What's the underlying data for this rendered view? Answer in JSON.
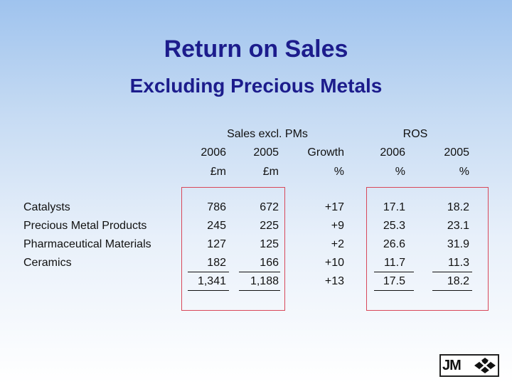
{
  "title": "Return on Sales",
  "subtitle": "Excluding Precious Metals",
  "headers": {
    "group_sales": "Sales excl. PMs",
    "group_ros": "ROS",
    "sales_2006_year": "2006",
    "sales_2006_unit": "£m",
    "sales_2005_year": "2005",
    "sales_2005_unit": "£m",
    "growth_label": "Growth",
    "growth_unit": "%",
    "ros_2006_year": "2006",
    "ros_2006_unit": "%",
    "ros_2005_year": "2005",
    "ros_2005_unit": "%"
  },
  "rows": [
    {
      "label": "Catalysts",
      "sales_2006": "786",
      "sales_2005": "672",
      "growth": "+17",
      "ros_2006": "17.1",
      "ros_2005": "18.2"
    },
    {
      "label": "Precious Metal Products",
      "sales_2006": "245",
      "sales_2005": "225",
      "growth": "+9",
      "ros_2006": "25.3",
      "ros_2005": "23.1"
    },
    {
      "label": "Pharmaceutical Materials",
      "sales_2006": "127",
      "sales_2005": "125",
      "growth": "+2",
      "ros_2006": "26.6",
      "ros_2005": "31.9"
    },
    {
      "label": "Ceramics",
      "sales_2006": "182",
      "sales_2005": "166",
      "growth": "+10",
      "ros_2006": "11.7",
      "ros_2005": "11.3"
    }
  ],
  "totals": {
    "sales_2006": "1,341",
    "sales_2005": "1,188",
    "growth": "+13",
    "ros_2006": "17.5",
    "ros_2005": "18.2"
  },
  "logo_text": "JM",
  "colors": {
    "title": "#1c1c8c",
    "highlight_box": "#d8485a"
  }
}
